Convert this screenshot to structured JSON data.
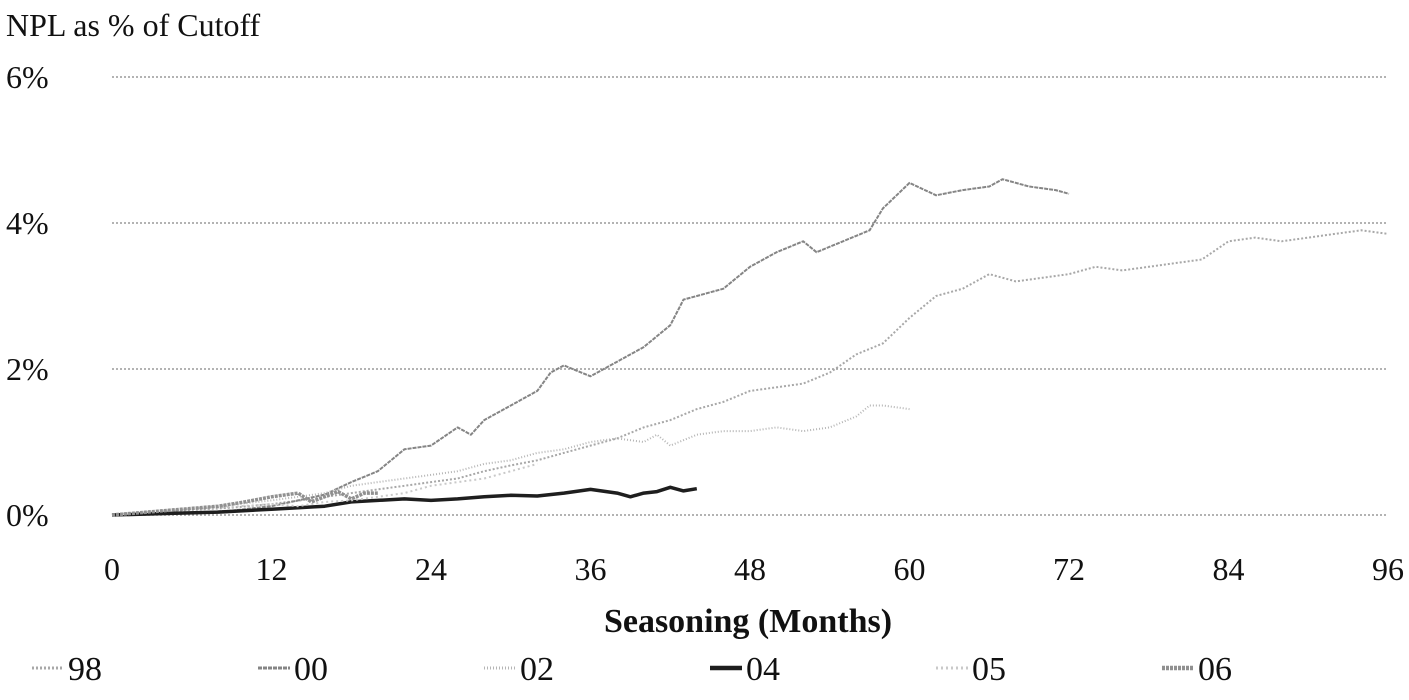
{
  "chart_data": {
    "type": "line",
    "title": "",
    "ylabel": "NPL as % of Cutoff",
    "xlabel": "Seasoning (Months)",
    "xlim": [
      0,
      96
    ],
    "ylim": [
      0,
      6
    ],
    "x_ticks": [
      0,
      12,
      24,
      36,
      48,
      60,
      72,
      84,
      96
    ],
    "x_tick_labels": [
      "0",
      "12",
      "24",
      "36",
      "48",
      "60",
      "72",
      "84",
      "96"
    ],
    "y_ticks": [
      0,
      2,
      4,
      6
    ],
    "y_tick_labels": [
      "0%",
      "2%",
      "4%",
      "6%"
    ],
    "grid": "horizontal dotted",
    "legend_position": "bottom",
    "series": [
      {
        "name": "98",
        "color": "#a8a8a8",
        "width": 2,
        "dash": "2 2",
        "points": [
          [
            0,
            0
          ],
          [
            3,
            0.03
          ],
          [
            6,
            0.07
          ],
          [
            9,
            0.1
          ],
          [
            12,
            0.15
          ],
          [
            15,
            0.22
          ],
          [
            18,
            0.3
          ],
          [
            20,
            0.35
          ],
          [
            22,
            0.4
          ],
          [
            24,
            0.45
          ],
          [
            26,
            0.5
          ],
          [
            28,
            0.6
          ],
          [
            30,
            0.68
          ],
          [
            32,
            0.75
          ],
          [
            34,
            0.85
          ],
          [
            36,
            0.95
          ],
          [
            38,
            1.05
          ],
          [
            40,
            1.2
          ],
          [
            42,
            1.3
          ],
          [
            44,
            1.45
          ],
          [
            46,
            1.55
          ],
          [
            48,
            1.7
          ],
          [
            50,
            1.75
          ],
          [
            52,
            1.8
          ],
          [
            54,
            1.95
          ],
          [
            56,
            2.2
          ],
          [
            58,
            2.35
          ],
          [
            60,
            2.7
          ],
          [
            62,
            3.0
          ],
          [
            64,
            3.1
          ],
          [
            66,
            3.3
          ],
          [
            68,
            3.2
          ],
          [
            70,
            3.25
          ],
          [
            72,
            3.3
          ],
          [
            74,
            3.4
          ],
          [
            76,
            3.35
          ],
          [
            78,
            3.4
          ],
          [
            80,
            3.45
          ],
          [
            82,
            3.5
          ],
          [
            84,
            3.75
          ],
          [
            86,
            3.8
          ],
          [
            88,
            3.75
          ],
          [
            90,
            3.8
          ],
          [
            92,
            3.85
          ],
          [
            94,
            3.9
          ],
          [
            96,
            3.85
          ]
        ]
      },
      {
        "name": "00",
        "color": "#858585",
        "width": 2,
        "dash": "4 1",
        "points": [
          [
            0,
            0
          ],
          [
            3,
            0.02
          ],
          [
            6,
            0.03
          ],
          [
            9,
            0.06
          ],
          [
            12,
            0.12
          ],
          [
            14,
            0.2
          ],
          [
            16,
            0.28
          ],
          [
            18,
            0.45
          ],
          [
            20,
            0.6
          ],
          [
            22,
            0.9
          ],
          [
            24,
            0.95
          ],
          [
            26,
            1.2
          ],
          [
            27,
            1.1
          ],
          [
            28,
            1.3
          ],
          [
            30,
            1.5
          ],
          [
            32,
            1.7
          ],
          [
            33,
            1.95
          ],
          [
            34,
            2.05
          ],
          [
            36,
            1.9
          ],
          [
            38,
            2.1
          ],
          [
            40,
            2.3
          ],
          [
            42,
            2.6
          ],
          [
            43,
            2.95
          ],
          [
            44,
            3.0
          ],
          [
            46,
            3.1
          ],
          [
            48,
            3.4
          ],
          [
            50,
            3.6
          ],
          [
            52,
            3.75
          ],
          [
            53,
            3.6
          ],
          [
            55,
            3.75
          ],
          [
            57,
            3.9
          ],
          [
            58,
            4.2
          ],
          [
            60,
            4.55
          ],
          [
            62,
            4.38
          ],
          [
            64,
            4.45
          ],
          [
            66,
            4.5
          ],
          [
            67,
            4.6
          ],
          [
            69,
            4.5
          ],
          [
            71,
            4.45
          ],
          [
            72,
            4.4
          ]
        ]
      },
      {
        "name": "02",
        "color": "#b5b5b5",
        "width": 2,
        "dash": "1 2",
        "points": [
          [
            0,
            0
          ],
          [
            4,
            0.05
          ],
          [
            8,
            0.12
          ],
          [
            12,
            0.2
          ],
          [
            14,
            0.25
          ],
          [
            16,
            0.3
          ],
          [
            18,
            0.4
          ],
          [
            20,
            0.45
          ],
          [
            22,
            0.5
          ],
          [
            24,
            0.55
          ],
          [
            26,
            0.6
          ],
          [
            28,
            0.7
          ],
          [
            30,
            0.75
          ],
          [
            32,
            0.85
          ],
          [
            34,
            0.9
          ],
          [
            36,
            1.0
          ],
          [
            38,
            1.05
          ],
          [
            40,
            1.0
          ],
          [
            41,
            1.1
          ],
          [
            42,
            0.95
          ],
          [
            44,
            1.1
          ],
          [
            46,
            1.15
          ],
          [
            48,
            1.15
          ],
          [
            50,
            1.2
          ],
          [
            52,
            1.15
          ],
          [
            54,
            1.2
          ],
          [
            56,
            1.35
          ],
          [
            57,
            1.5
          ],
          [
            58,
            1.5
          ],
          [
            60,
            1.45
          ]
        ]
      },
      {
        "name": "04",
        "color": "#1e1e1e",
        "width": 3.5,
        "dash": "",
        "points": [
          [
            0,
            0
          ],
          [
            4,
            0.02
          ],
          [
            8,
            0.04
          ],
          [
            12,
            0.08
          ],
          [
            14,
            0.1
          ],
          [
            16,
            0.12
          ],
          [
            18,
            0.18
          ],
          [
            20,
            0.2
          ],
          [
            22,
            0.22
          ],
          [
            24,
            0.2
          ],
          [
            26,
            0.22
          ],
          [
            28,
            0.25
          ],
          [
            30,
            0.27
          ],
          [
            32,
            0.26
          ],
          [
            34,
            0.3
          ],
          [
            36,
            0.35
          ],
          [
            38,
            0.3
          ],
          [
            39,
            0.25
          ],
          [
            40,
            0.3
          ],
          [
            41,
            0.32
          ],
          [
            42,
            0.38
          ],
          [
            43,
            0.33
          ],
          [
            44,
            0.36
          ]
        ]
      },
      {
        "name": "05",
        "color": "#c9c9c9",
        "width": 2,
        "dash": "2 3",
        "points": [
          [
            0,
            0
          ],
          [
            4,
            0.06
          ],
          [
            8,
            0.1
          ],
          [
            12,
            0.15
          ],
          [
            14,
            0.12
          ],
          [
            16,
            0.18
          ],
          [
            18,
            0.2
          ],
          [
            20,
            0.25
          ],
          [
            22,
            0.3
          ],
          [
            24,
            0.4
          ],
          [
            26,
            0.45
          ],
          [
            28,
            0.5
          ],
          [
            30,
            0.6
          ],
          [
            32,
            0.7
          ]
        ]
      },
      {
        "name": "06",
        "color": "#909090",
        "width": 3.5,
        "dash": "3 1",
        "points": [
          [
            0,
            0
          ],
          [
            4,
            0.06
          ],
          [
            8,
            0.12
          ],
          [
            10,
            0.18
          ],
          [
            12,
            0.25
          ],
          [
            14,
            0.3
          ],
          [
            15,
            0.18
          ],
          [
            17,
            0.32
          ],
          [
            18,
            0.22
          ],
          [
            19,
            0.3
          ],
          [
            20,
            0.3
          ]
        ]
      }
    ]
  }
}
